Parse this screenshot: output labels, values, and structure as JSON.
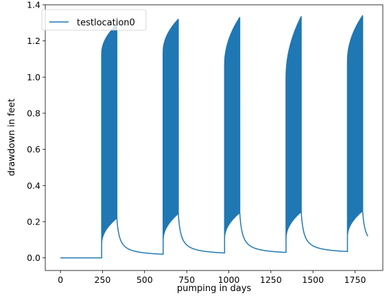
{
  "chart_data": {
    "type": "line",
    "xlabel": "pumping in days",
    "ylabel": "drawdown in feet",
    "xlim": [
      -90,
      1915
    ],
    "ylim": [
      -0.07,
      1.4
    ],
    "xticks": [
      0,
      250,
      500,
      750,
      1000,
      1250,
      1500,
      1750
    ],
    "yticks": [
      0.0,
      0.2,
      0.4,
      0.6,
      0.8,
      1.0,
      1.2,
      1.4
    ],
    "xtick_labels": [
      "0",
      "250",
      "500",
      "750",
      "1000",
      "1250",
      "1500",
      "1750"
    ],
    "ytick_labels": [
      "0.0",
      "0.2",
      "0.4",
      "0.6",
      "0.8",
      "1.0",
      "1.2",
      "1.4"
    ],
    "grid": false,
    "legend_position": "top-left",
    "series": [
      {
        "name": "testlocation0",
        "color": "#1f77b4",
        "x_range": [
          0,
          1826
        ],
        "pumping_cycles": [
          {
            "start": 245,
            "end": 335,
            "first_peak": 1.13,
            "last_peak": 1.29,
            "first_trough": 0.08,
            "last_trough": 0.22,
            "recovery_end": 0.02
          },
          {
            "start": 610,
            "end": 700,
            "first_peak": 1.14,
            "last_peak": 1.32,
            "first_trough": 0.1,
            "last_trough": 0.245,
            "recovery_end": 0.027
          },
          {
            "start": 975,
            "end": 1065,
            "first_peak": 1.07,
            "last_peak": 1.33,
            "first_trough": 0.11,
            "last_trough": 0.25,
            "recovery_end": 0.03
          },
          {
            "start": 1340,
            "end": 1430,
            "first_peak": 1.0,
            "last_peak": 1.335,
            "first_trough": 0.11,
            "last_trough": 0.255,
            "recovery_end": 0.035
          },
          {
            "start": 1705,
            "end": 1795,
            "first_peak": 1.09,
            "last_peak": 1.34,
            "first_trough": 0.12,
            "last_trough": 0.26,
            "recovery_end": 0.12
          }
        ]
      }
    ]
  }
}
